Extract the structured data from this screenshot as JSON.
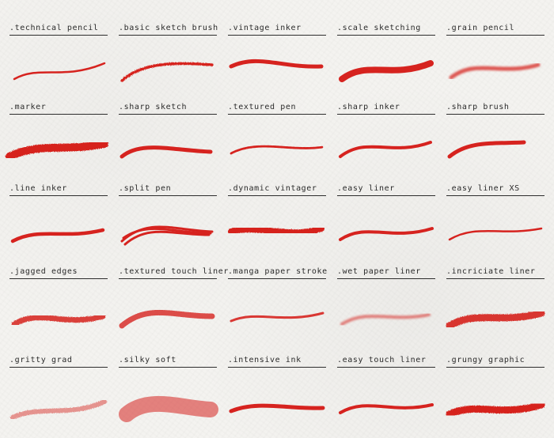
{
  "accent_color": "#d6231f",
  "brushes": [
    {
      "label": ".technical pencil",
      "icon": "technical-pencil-stroke-icon"
    },
    {
      "label": ".basic sketch brush",
      "icon": "basic-sketch-brush-stroke-icon"
    },
    {
      "label": ".vintage inker",
      "icon": "vintage-inker-stroke-icon"
    },
    {
      "label": ".scale sketching",
      "icon": "scale-sketching-stroke-icon"
    },
    {
      "label": ".grain pencil",
      "icon": "grain-pencil-stroke-icon"
    },
    {
      "label": ".marker",
      "icon": "marker-stroke-icon"
    },
    {
      "label": ".sharp sketch",
      "icon": "sharp-sketch-stroke-icon"
    },
    {
      "label": ".textured pen",
      "icon": "textured-pen-stroke-icon"
    },
    {
      "label": ".sharp inker",
      "icon": "sharp-inker-stroke-icon"
    },
    {
      "label": ".sharp brush",
      "icon": "sharp-brush-stroke-icon"
    },
    {
      "label": ".line inker",
      "icon": "line-inker-stroke-icon"
    },
    {
      "label": ".split pen",
      "icon": "split-pen-stroke-icon"
    },
    {
      "label": ".dynamic vintager",
      "icon": "dynamic-vintager-stroke-icon"
    },
    {
      "label": ".easy liner",
      "icon": "easy-liner-stroke-icon"
    },
    {
      "label": ".easy liner XS",
      "icon": "easy-liner-xs-stroke-icon"
    },
    {
      "label": ".jagged edges",
      "icon": "jagged-edges-stroke-icon"
    },
    {
      "label": ".textured touch liner",
      "icon": "textured-touch-liner-stroke-icon"
    },
    {
      "label": ".manga paper stroke",
      "icon": "manga-paper-stroke-icon"
    },
    {
      "label": ".wet paper liner",
      "icon": "wet-paper-liner-stroke-icon"
    },
    {
      "label": ".incriciate liner",
      "icon": "incriciate-liner-stroke-icon"
    },
    {
      "label": ".gritty grad",
      "icon": "gritty-grad-stroke-icon"
    },
    {
      "label": ".silky soft",
      "icon": "silky-soft-stroke-icon"
    },
    {
      "label": ".intensive ink",
      "icon": "intensive-ink-stroke-icon"
    },
    {
      "label": ".easy touch liner",
      "icon": "easy-touch-liner-stroke-icon"
    },
    {
      "label": ".grungy graphic",
      "icon": "grungy-graphic-stroke-icon"
    }
  ]
}
